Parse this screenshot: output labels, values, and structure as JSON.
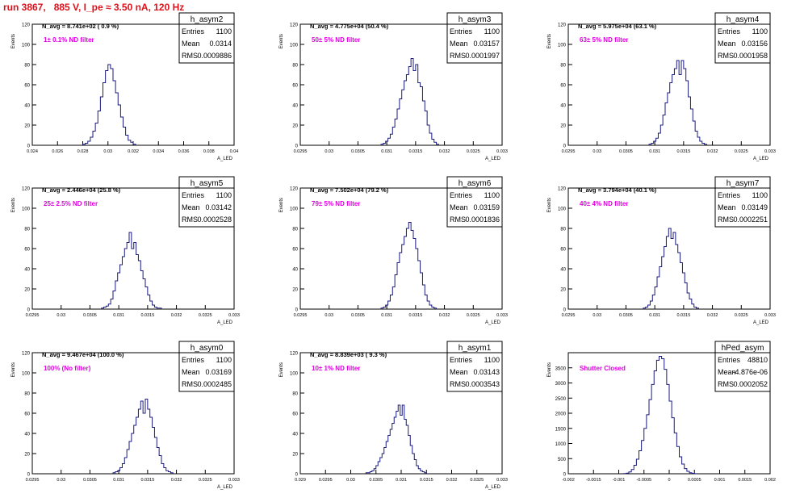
{
  "page": {
    "title": "run 3867,   885 V, I_pe ≈ 3.50 nA, 120 Hz"
  },
  "colors": {
    "title": "#e0101a",
    "histogram_line": "#1a1a80",
    "filter_text": "#e000e0",
    "axis": "#000000"
  },
  "chart_data": [
    {
      "type": "histogram",
      "name": "h_asym2",
      "stats": {
        "entries": "1100",
        "mean": "0.0314",
        "rms": "0.0009886"
      },
      "navg": "N_avg = 8.741e+02 ( 0.9 %)",
      "filter_label": "1± 0.1% ND filter",
      "ylabel": "Events",
      "xlabel": "A_LED",
      "xlim": [
        0.024,
        0.04
      ],
      "ylim": [
        0,
        120
      ],
      "xticks": [
        "0.024",
        "0.026",
        "0.028",
        "0.03",
        "0.032",
        "0.034",
        "0.036",
        "0.038",
        "0.04"
      ],
      "xtick_values": [
        0.024,
        0.026,
        0.028,
        0.03,
        0.032,
        0.034,
        0.036,
        0.038,
        0.04
      ],
      "yticks": [
        "0",
        "20",
        "40",
        "60",
        "80",
        "100",
        "120"
      ],
      "ytick_values": [
        0,
        20,
        40,
        60,
        80,
        100,
        120
      ],
      "bin_low": 0.028,
      "bin_width": 0.0002,
      "counts": [
        1,
        2,
        4,
        8,
        14,
        22,
        34,
        48,
        62,
        74,
        80,
        76,
        64,
        52,
        40,
        28,
        18,
        10,
        5,
        3,
        1
      ]
    },
    {
      "type": "histogram",
      "name": "h_asym3",
      "stats": {
        "entries": "1100",
        "mean": "0.03157",
        "rms": "0.0001997"
      },
      "navg": "N_avg = 4.775e+04 (50.4 %)",
      "filter_label": "50± 5% ND filter",
      "ylabel": "Events",
      "xlabel": "A_LED",
      "xlim": [
        0.0295,
        0.033
      ],
      "ylim": [
        0,
        120
      ],
      "xticks": [
        "0.0295",
        "0.03",
        "0.0305",
        "0.031",
        "0.0315",
        "0.032",
        "0.0325",
        "0.033"
      ],
      "xtick_values": [
        0.0295,
        0.03,
        0.0305,
        0.031,
        0.0315,
        0.032,
        0.0325,
        0.033
      ],
      "yticks": [
        "0",
        "20",
        "40",
        "60",
        "80",
        "100",
        "120"
      ],
      "ytick_values": [
        0,
        20,
        40,
        60,
        80,
        100,
        120
      ],
      "bin_low": 0.0309,
      "bin_width": 4e-05,
      "counts": [
        1,
        2,
        4,
        7,
        11,
        18,
        26,
        36,
        46,
        55,
        64,
        70,
        78,
        86,
        74,
        80,
        62,
        58,
        44,
        34,
        20,
        12,
        6,
        3,
        1
      ]
    },
    {
      "type": "histogram",
      "name": "h_asym4",
      "stats": {
        "entries": "1100",
        "mean": "0.03156",
        "rms": "0.0001958"
      },
      "navg": "N_avg = 5.975e+04 (63.1 %)",
      "filter_label": "63± 5% ND filter",
      "ylabel": "Events",
      "xlabel": "A_LED",
      "xlim": [
        0.0295,
        0.033
      ],
      "ylim": [
        0,
        120
      ],
      "xticks": [
        "0.0295",
        "0.03",
        "0.0305",
        "0.031",
        "0.0315",
        "0.032",
        "0.0325",
        "0.033"
      ],
      "xtick_values": [
        0.0295,
        0.03,
        0.0305,
        0.031,
        0.0315,
        0.032,
        0.0325,
        0.033
      ],
      "yticks": [
        "0",
        "20",
        "40",
        "60",
        "80",
        "100",
        "120"
      ],
      "ytick_values": [
        0,
        20,
        40,
        60,
        80,
        100,
        120
      ],
      "bin_low": 0.0309,
      "bin_width": 4e-05,
      "counts": [
        1,
        2,
        4,
        7,
        12,
        20,
        30,
        42,
        52,
        62,
        70,
        76,
        84,
        70,
        84,
        76,
        64,
        48,
        36,
        24,
        14,
        8,
        4,
        2,
        1
      ]
    },
    {
      "type": "histogram",
      "name": "h_asym5",
      "stats": {
        "entries": "1100",
        "mean": "0.03142",
        "rms": "0.0002528"
      },
      "navg": "N_avg = 2.446e+04 (25.8 %)",
      "filter_label": "25± 2.5% ND filter",
      "ylabel": "Events",
      "xlabel": "A_LED",
      "xlim": [
        0.0295,
        0.033
      ],
      "ylim": [
        0,
        120
      ],
      "xticks": [
        "0.0295",
        "0.03",
        "0.0305",
        "0.031",
        "0.0315",
        "0.032",
        "0.0325",
        "0.033"
      ],
      "xtick_values": [
        0.0295,
        0.03,
        0.0305,
        0.031,
        0.0315,
        0.032,
        0.0325,
        0.033
      ],
      "yticks": [
        "0",
        "20",
        "40",
        "60",
        "80",
        "100",
        "120"
      ],
      "ytick_values": [
        0,
        20,
        40,
        60,
        80,
        100,
        120
      ],
      "bin_low": 0.0307,
      "bin_width": 4e-05,
      "counts": [
        1,
        2,
        3,
        5,
        10,
        18,
        28,
        36,
        44,
        52,
        60,
        66,
        76,
        60,
        66,
        54,
        48,
        38,
        30,
        22,
        14,
        8,
        4,
        2,
        1,
        1
      ]
    },
    {
      "type": "histogram",
      "name": "h_asym6",
      "stats": {
        "entries": "1100",
        "mean": "0.03159",
        "rms": "0.0001836"
      },
      "navg": "N_avg = 7.502e+04 (79.2 %)",
      "filter_label": "79± 5% ND filter",
      "ylabel": "Events",
      "xlabel": "A_LED",
      "xlim": [
        0.0295,
        0.033
      ],
      "ylim": [
        0,
        120
      ],
      "xticks": [
        "0.0295",
        "0.03",
        "0.0305",
        "0.031",
        "0.0315",
        "0.032",
        "0.0325",
        "0.033"
      ],
      "xtick_values": [
        0.0295,
        0.03,
        0.0305,
        0.031,
        0.0315,
        0.032,
        0.0325,
        0.033
      ],
      "yticks": [
        "0",
        "20",
        "40",
        "60",
        "80",
        "100",
        "120"
      ],
      "ytick_values": [
        0,
        20,
        40,
        60,
        80,
        100,
        120
      ],
      "bin_low": 0.0309,
      "bin_width": 4e-05,
      "counts": [
        1,
        2,
        4,
        8,
        14,
        22,
        34,
        46,
        56,
        64,
        72,
        80,
        86,
        78,
        70,
        60,
        48,
        36,
        24,
        14,
        8,
        4,
        2,
        1
      ]
    },
    {
      "type": "histogram",
      "name": "h_asym7",
      "stats": {
        "entries": "1100",
        "mean": "0.03149",
        "rms": "0.0002251"
      },
      "navg": "N_avg = 3.794e+04 (40.1 %)",
      "filter_label": "40± 4% ND filter",
      "ylabel": "Events",
      "xlabel": "A_LED",
      "xlim": [
        0.0295,
        0.033
      ],
      "ylim": [
        0,
        120
      ],
      "xticks": [
        "0.0295",
        "0.03",
        "0.0305",
        "0.031",
        "0.0315",
        "0.032",
        "0.0325",
        "0.033"
      ],
      "xtick_values": [
        0.0295,
        0.03,
        0.0305,
        0.031,
        0.0315,
        0.032,
        0.0325,
        0.033
      ],
      "yticks": [
        "0",
        "20",
        "40",
        "60",
        "80",
        "100",
        "120"
      ],
      "ytick_values": [
        0,
        20,
        40,
        60,
        80,
        100,
        120
      ],
      "bin_low": 0.0308,
      "bin_width": 4e-05,
      "counts": [
        1,
        2,
        4,
        8,
        14,
        22,
        32,
        42,
        52,
        62,
        72,
        80,
        70,
        76,
        64,
        56,
        46,
        36,
        26,
        16,
        10,
        5,
        2,
        1
      ]
    },
    {
      "type": "histogram",
      "name": "h_asym0",
      "stats": {
        "entries": "1100",
        "mean": "0.03169",
        "rms": "0.0002485"
      },
      "navg": "N_avg = 9.467e+04 (100.0 %)",
      "filter_label": "100% (No filter)",
      "ylabel": "Events",
      "xlabel": "A_LED",
      "xlim": [
        0.0295,
        0.033
      ],
      "ylim": [
        0,
        120
      ],
      "xticks": [
        "0.0295",
        "0.03",
        "0.0305",
        "0.031",
        "0.0315",
        "0.032",
        "0.0325",
        "0.033"
      ],
      "xtick_values": [
        0.0295,
        0.03,
        0.0305,
        0.031,
        0.0315,
        0.032,
        0.0325,
        0.033
      ],
      "yticks": [
        "0",
        "20",
        "40",
        "60",
        "80",
        "100",
        "120"
      ],
      "ytick_values": [
        0,
        20,
        40,
        60,
        80,
        100,
        120
      ],
      "bin_low": 0.0309,
      "bin_width": 4e-05,
      "counts": [
        1,
        2,
        3,
        6,
        10,
        16,
        24,
        32,
        40,
        48,
        56,
        64,
        72,
        60,
        74,
        64,
        56,
        46,
        36,
        26,
        18,
        10,
        6,
        3,
        2,
        1
      ]
    },
    {
      "type": "histogram",
      "name": "h_asym1",
      "stats": {
        "entries": "1100",
        "mean": "0.03143",
        "rms": "0.0003543"
      },
      "navg": "N_avg = 8.839e+03 ( 9.3 %)",
      "filter_label": "10± 1% ND filter",
      "ylabel": "Events",
      "xlabel": "A_LED",
      "xlim": [
        0.029,
        0.033
      ],
      "ylim": [
        0,
        120
      ],
      "xticks": [
        "0.029",
        "0.0295",
        "0.03",
        "0.0305",
        "0.031",
        "0.0315",
        "0.032",
        "0.0325",
        "0.033"
      ],
      "xtick_values": [
        0.029,
        0.0295,
        0.03,
        0.0305,
        0.031,
        0.0315,
        0.032,
        0.0325,
        0.033
      ],
      "yticks": [
        "0",
        "20",
        "40",
        "60",
        "80",
        "100",
        "120"
      ],
      "ytick_values": [
        0,
        20,
        40,
        60,
        80,
        100,
        120
      ],
      "bin_low": 0.0303,
      "bin_width": 4e-05,
      "counts": [
        1,
        1,
        2,
        3,
        5,
        8,
        12,
        16,
        20,
        26,
        32,
        38,
        44,
        50,
        56,
        62,
        68,
        58,
        68,
        54,
        48,
        38,
        28,
        20,
        14,
        8,
        5,
        3,
        2,
        1
      ]
    },
    {
      "type": "histogram",
      "name": "hPed_asym",
      "stats": {
        "entries": "48810",
        "mean": "-4.876e-06",
        "rms": "0.0002052"
      },
      "navg": "",
      "filter_label": "Shutter Closed",
      "ylabel": "Events",
      "xlabel": "",
      "xlim": [
        -0.002,
        0.002
      ],
      "ylim": [
        0,
        4000
      ],
      "xticks": [
        "-0.002",
        "-0.0015",
        "-0.001",
        "-0.0005",
        "0",
        "0.0005",
        "0.001",
        "0.0015",
        "0.002"
      ],
      "xtick_values": [
        -0.002,
        -0.0015,
        -0.001,
        -0.0005,
        0,
        0.0005,
        0.001,
        0.0015,
        0.002
      ],
      "yticks": [
        "0",
        "500",
        "1000",
        "1500",
        "2000",
        "2500",
        "3000",
        "3500"
      ],
      "ytick_values": [
        0,
        500,
        1000,
        1500,
        2000,
        2500,
        3000,
        3500
      ],
      "bin_low": -0.0009,
      "bin_width": 5e-05,
      "counts": [
        5,
        20,
        60,
        140,
        280,
        480,
        760,
        1100,
        1500,
        1950,
        2450,
        2950,
        3400,
        3750,
        3880,
        3800,
        3450,
        2950,
        2400,
        1850,
        1350,
        900,
        560,
        320,
        170,
        80,
        35,
        12,
        4
      ]
    }
  ]
}
